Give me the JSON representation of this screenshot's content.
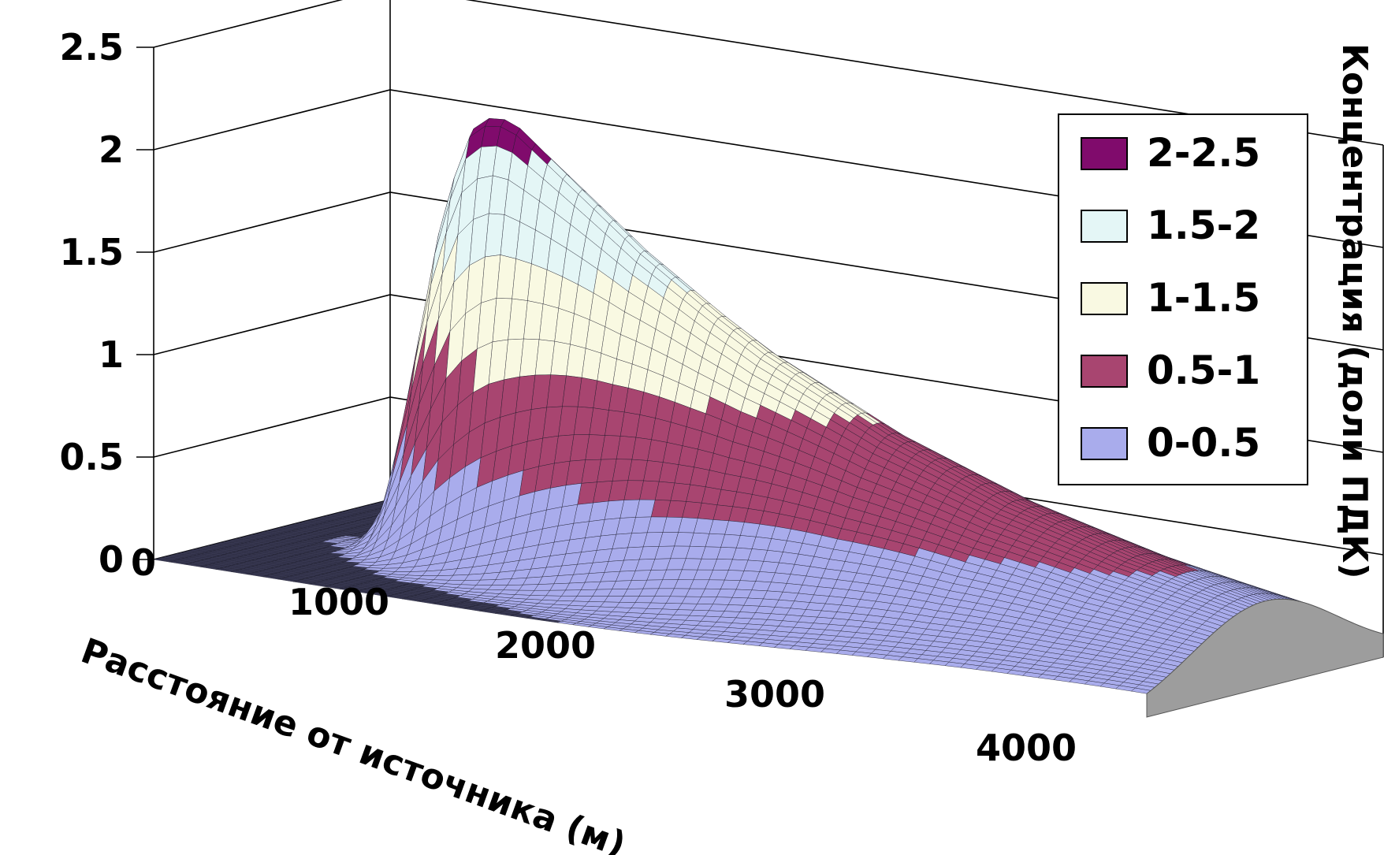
{
  "chart_data": {
    "type": "surface",
    "xlabel": "Расстояние от источника (м)",
    "zlabel": "Концентрация (доли ПДК)",
    "x_ticks": [
      "0",
      "1000",
      "2000",
      "3000",
      "4000"
    ],
    "z_ticks": [
      "0",
      "0.5",
      "1",
      "1.5",
      "2",
      "2.5"
    ],
    "xlim": [
      0,
      4000
    ],
    "zlim": [
      0,
      2.5
    ],
    "peak": {
      "x": 900,
      "z": 2.2
    },
    "centerline_profile": {
      "x": [
        0,
        200,
        400,
        500,
        600,
        700,
        800,
        900,
        1000,
        1200,
        1500,
        1800,
        2000,
        2500,
        3000,
        3500,
        4000
      ],
      "z": [
        0,
        0,
        0.02,
        0.3,
        1.0,
        1.7,
        2.1,
        2.2,
        2.15,
        1.95,
        1.65,
        1.4,
        1.25,
        0.95,
        0.72,
        0.55,
        0.42
      ]
    },
    "legend": [
      {
        "label": "2-2.5",
        "color": "#800b6c"
      },
      {
        "label": "1.5-2",
        "color": "#e4f6f6"
      },
      {
        "label": "1-1.5",
        "color": "#f9f9e2"
      },
      {
        "label": "0.5-1",
        "color": "#a84570"
      },
      {
        "label": "0-0.5",
        "color": "#a9acec"
      }
    ],
    "legend_position": "right",
    "grid": true
  }
}
